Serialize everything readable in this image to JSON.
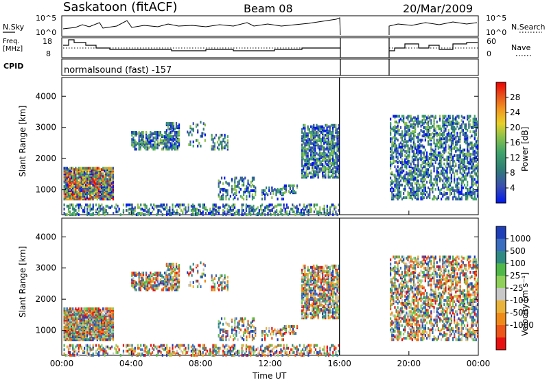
{
  "header": {
    "station": "Saskatoon (fitACF)",
    "beam": "Beam 08",
    "date": "20/Mar/2009"
  },
  "summary_panels": {
    "nsky_label": "N.Sky",
    "nsearch_label": "N.Search",
    "freq_label_line1": "Freq.",
    "freq_label_line2": "[MHz]",
    "nave_label": "Nave",
    "cpid_label": "CPID",
    "cpid_text": "normalsound (fast) -157",
    "nsky_ticks": [
      "10^5",
      "10^0"
    ],
    "nsearch_ticks": [
      "10^5",
      "10^0"
    ],
    "freq_ticks": [
      "18",
      "8"
    ],
    "nave_ticks": [
      "60",
      "0"
    ]
  },
  "chart_data": [
    {
      "type": "heatmap",
      "name": "power",
      "ylabel": "Slant Range [km]",
      "y_ticks": [
        "1000",
        "2000",
        "3000",
        "4000"
      ],
      "ylim": [
        200,
        4600
      ],
      "colorbar_label": "Power [dB]",
      "colorbar_ticks": [
        "4",
        "8",
        "12",
        "16",
        "20",
        "24",
        "28"
      ],
      "colorbar_colors": [
        "#0018f0",
        "#3a4fb0",
        "#2e7d74",
        "#3fa46a",
        "#8cc24a",
        "#e8d027",
        "#f2951f",
        "#e84a1a",
        "#f00000"
      ],
      "data_gap_utc": [
        16.0,
        18.9
      ]
    },
    {
      "type": "heatmap",
      "name": "velocity",
      "xlabel": "Time UT",
      "ylabel": "Slant Range [km]",
      "x_ticks": [
        "00:00",
        "04:00",
        "08:00",
        "12:00",
        "16:00",
        "20:00",
        "00:00"
      ],
      "y_ticks": [
        "1000",
        "2000",
        "3000",
        "4000"
      ],
      "ylim": [
        200,
        4600
      ],
      "colorbar_label": "Velocity [m s⁻¹]",
      "colorbar_ticks": [
        "1000",
        "500",
        "100",
        "25",
        "-25",
        "-100",
        "-500",
        "-1000"
      ],
      "colorbar_colors": [
        "#1f3fb8",
        "#3a6cc0",
        "#2f8a84",
        "#50b848",
        "#8fd05a",
        "#c8c8c8",
        "#e9b23a",
        "#ef8a18",
        "#ee5518",
        "#e81010"
      ],
      "data_gap_utc": [
        16.0,
        18.9
      ]
    }
  ]
}
